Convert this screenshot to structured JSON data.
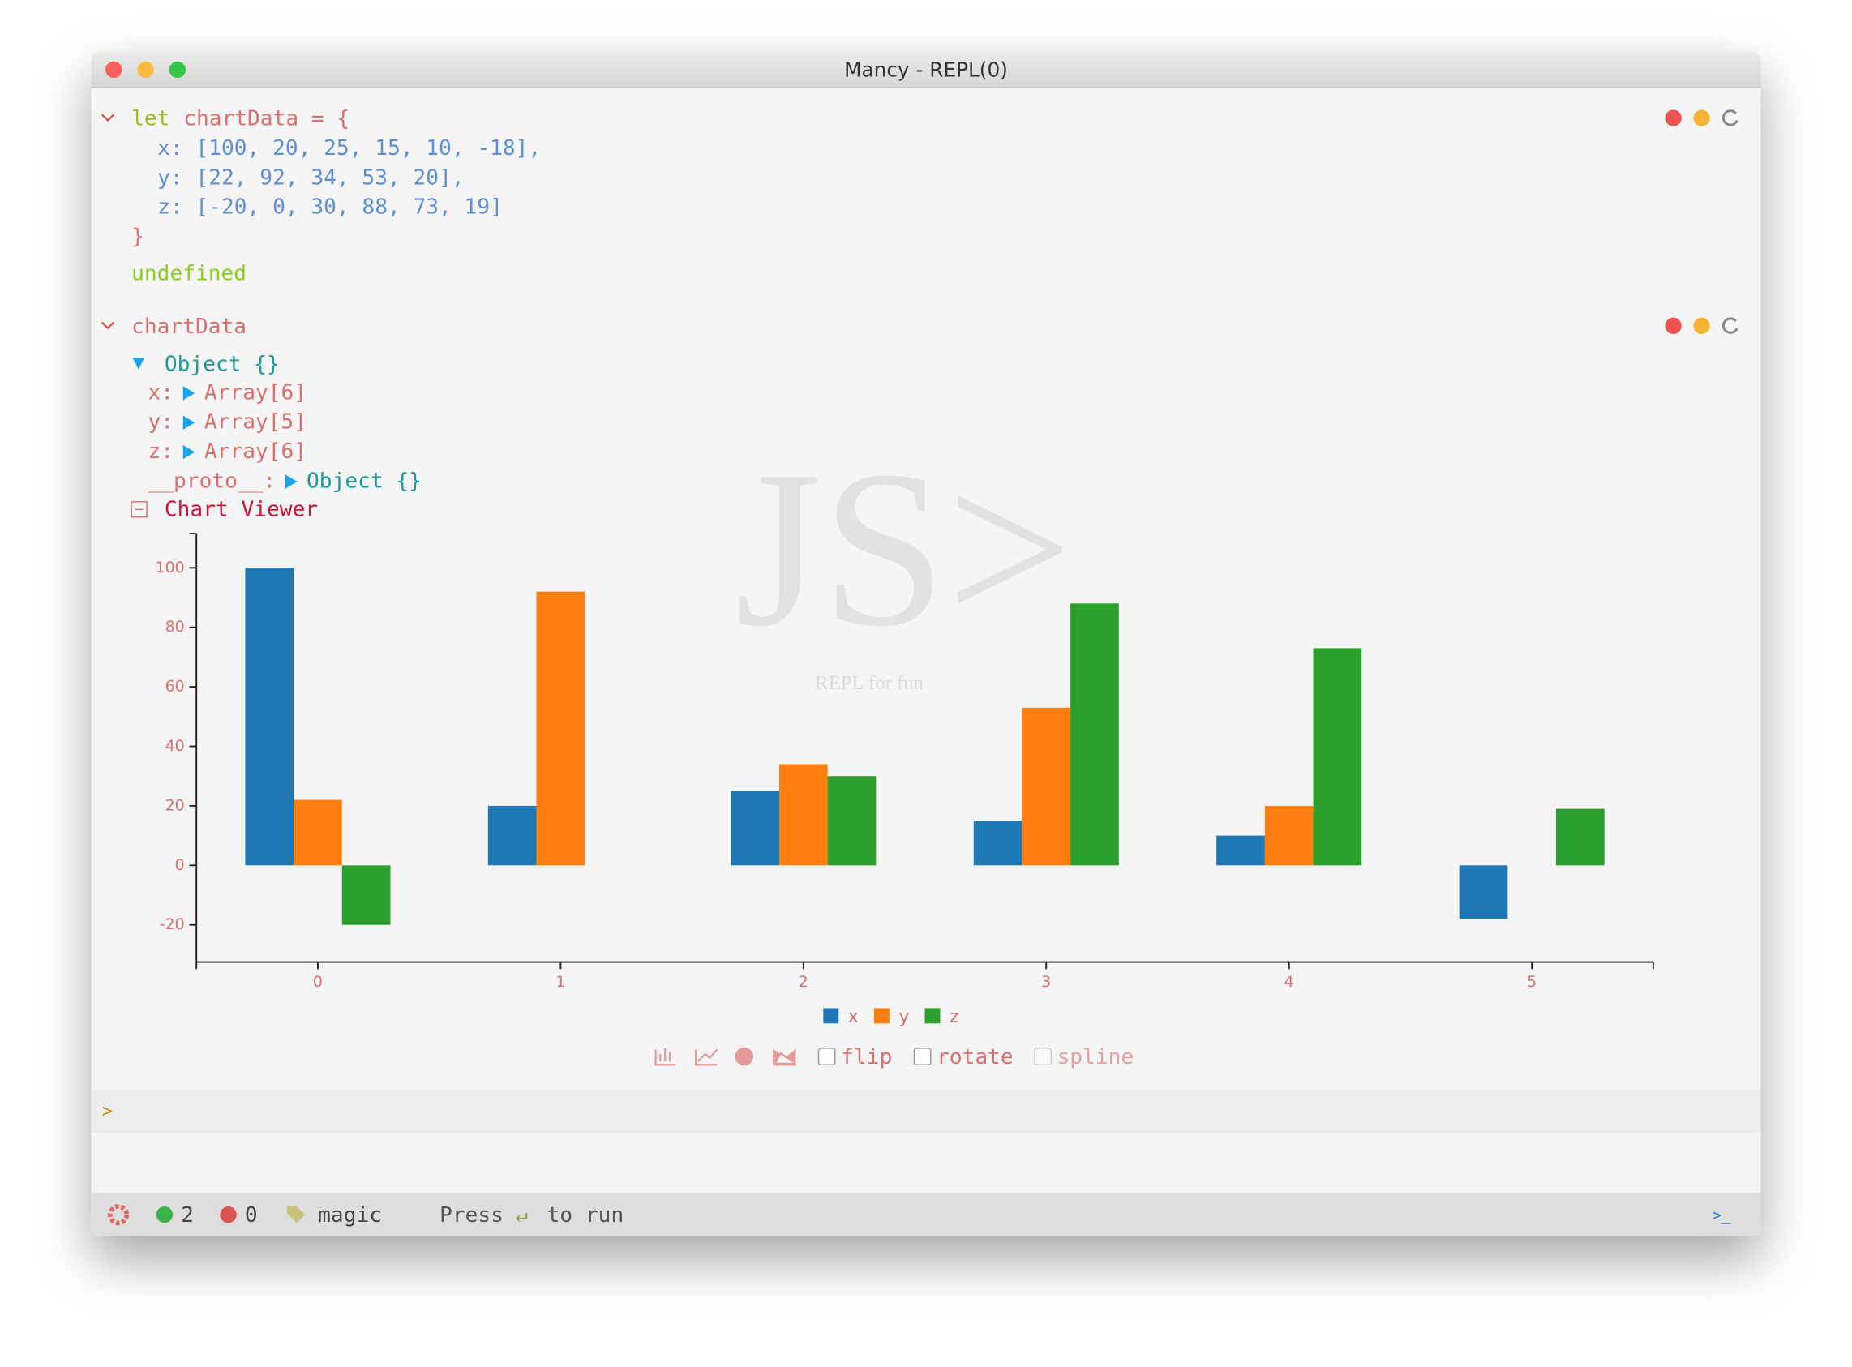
{
  "window": {
    "title": "Mancy - REPL(0)"
  },
  "cells": [
    {
      "keyword": "let",
      "first_line": "chartData = {",
      "lines": [
        "x: [100, 20, 25, 15, 10, -18],",
        "y: [22, 92, 34, 53, 20],",
        "z: [-20, 0, 30, 88, 73, 19]",
        "}"
      ],
      "output": "undefined"
    },
    {
      "input": "chartData",
      "root": "Object {}",
      "tree": [
        {
          "key": "x:",
          "value": "Array[6]"
        },
        {
          "key": "y:",
          "value": "Array[5]"
        },
        {
          "key": "z:",
          "value": "Array[6]"
        },
        {
          "key": "__proto__:",
          "value": "Object {}"
        }
      ],
      "viewer": "Chart Viewer"
    }
  ],
  "watermark": {
    "logo": "JS>",
    "tagline": "REPL for fun"
  },
  "chart_data": {
    "type": "bar",
    "categories": [
      "0",
      "1",
      "2",
      "3",
      "4",
      "5"
    ],
    "series": [
      {
        "name": "x",
        "color": "#1f77b4",
        "values": [
          100,
          20,
          25,
          15,
          10,
          -18
        ]
      },
      {
        "name": "y",
        "color": "#ff7f0e",
        "values": [
          22,
          92,
          34,
          53,
          20,
          null
        ]
      },
      {
        "name": "z",
        "color": "#2ca02c",
        "values": [
          -20,
          0,
          30,
          88,
          73,
          19
        ]
      }
    ],
    "ylim": [
      -32.5,
      111.5
    ],
    "yticks": [
      -20,
      0,
      20,
      40,
      60,
      80,
      100
    ],
    "legend": "bottom"
  },
  "chart_controls": {
    "flip": "flip",
    "rotate": "rotate",
    "spline": "spline"
  },
  "prompt": ">",
  "status_bar": {
    "success_count": "2",
    "error_count": "0",
    "mode": "magic",
    "hint_before": "Press",
    "hint_symbol": "↵",
    "hint_after": "to run",
    "console_icon": ">_"
  }
}
